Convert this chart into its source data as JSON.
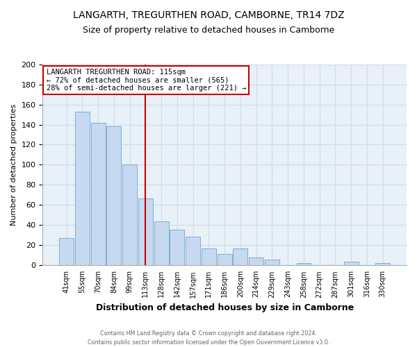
{
  "title": "LANGARTH, TREGURTHEN ROAD, CAMBORNE, TR14 7DZ",
  "subtitle": "Size of property relative to detached houses in Camborne",
  "xlabel": "Distribution of detached houses by size in Camborne",
  "ylabel": "Number of detached properties",
  "bar_labels": [
    "41sqm",
    "55sqm",
    "70sqm",
    "84sqm",
    "99sqm",
    "113sqm",
    "128sqm",
    "142sqm",
    "157sqm",
    "171sqm",
    "186sqm",
    "200sqm",
    "214sqm",
    "229sqm",
    "243sqm",
    "258sqm",
    "272sqm",
    "287sqm",
    "301sqm",
    "316sqm",
    "330sqm"
  ],
  "bar_values": [
    27,
    153,
    142,
    138,
    100,
    66,
    43,
    35,
    28,
    16,
    11,
    16,
    7,
    5,
    0,
    2,
    0,
    0,
    3,
    0,
    2
  ],
  "bar_color": "#c6d9f0",
  "bar_edge_color": "#7bafd4",
  "vline_x": 5,
  "vline_color": "#cc0000",
  "ylim": [
    0,
    200
  ],
  "yticks": [
    0,
    20,
    40,
    60,
    80,
    100,
    120,
    140,
    160,
    180,
    200
  ],
  "annotation_title": "LANGARTH TREGURTHEN ROAD: 115sqm",
  "annotation_line1": "← 72% of detached houses are smaller (565)",
  "annotation_line2": "28% of semi-detached houses are larger (221) →",
  "annotation_box_color": "#ffffff",
  "annotation_box_edge": "#cc0000",
  "footer_line1": "Contains HM Land Registry data © Crown copyright and database right 2024.",
  "footer_line2": "Contains public sector information licensed under the Open Government Licence v3.0.",
  "grid_color": "#d0dce8",
  "plot_bg_color": "#e8f0f8",
  "fig_bg_color": "#ffffff"
}
